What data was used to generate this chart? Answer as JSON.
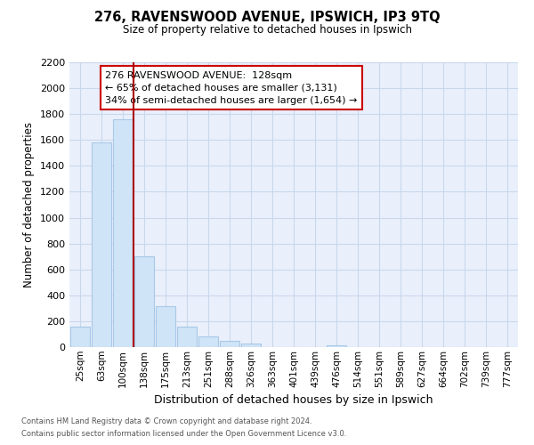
{
  "title": "276, RAVENSWOOD AVENUE, IPSWICH, IP3 9TQ",
  "subtitle": "Size of property relative to detached houses in Ipswich",
  "xlabel": "Distribution of detached houses by size in Ipswich",
  "ylabel": "Number of detached properties",
  "bar_labels": [
    "25sqm",
    "63sqm",
    "100sqm",
    "138sqm",
    "175sqm",
    "213sqm",
    "251sqm",
    "288sqm",
    "326sqm",
    "363sqm",
    "401sqm",
    "439sqm",
    "476sqm",
    "514sqm",
    "551sqm",
    "589sqm",
    "627sqm",
    "664sqm",
    "702sqm",
    "739sqm",
    "777sqm"
  ],
  "bar_values": [
    160,
    1580,
    1760,
    700,
    315,
    155,
    85,
    50,
    30,
    0,
    0,
    0,
    15,
    0,
    0,
    0,
    0,
    0,
    0,
    0,
    0
  ],
  "bar_color": "#d0e4f7",
  "bar_edge_color": "#a8c8e8",
  "vline_color": "#aa0000",
  "ylim": [
    0,
    2200
  ],
  "yticks": [
    0,
    200,
    400,
    600,
    800,
    1000,
    1200,
    1400,
    1600,
    1800,
    2000,
    2200
  ],
  "annotation_title": "276 RAVENSWOOD AVENUE:  128sqm",
  "annotation_line1": "← 65% of detached houses are smaller (3,131)",
  "annotation_line2": "34% of semi-detached houses are larger (1,654) →",
  "footnote1": "Contains HM Land Registry data © Crown copyright and database right 2024.",
  "footnote2": "Contains public sector information licensed under the Open Government Licence v3.0.",
  "grid_color": "#c8d8ec",
  "background_color": "#eaf0fb"
}
